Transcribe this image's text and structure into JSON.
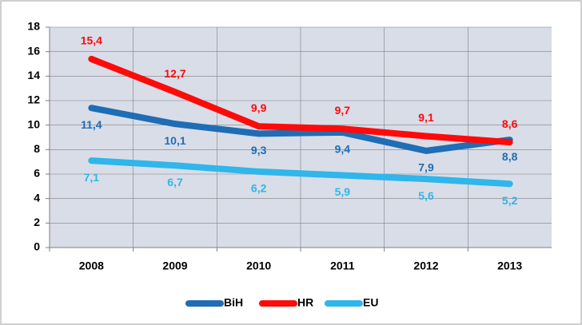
{
  "chart_data": {
    "type": "line",
    "categories": [
      "2008",
      "2009",
      "2010",
      "2011",
      "2012",
      "2013"
    ],
    "series": [
      {
        "name": "BiH",
        "color": "#1f6db4",
        "values": [
          11.4,
          10.1,
          9.3,
          9.4,
          7.9,
          8.8
        ],
        "value_labels": [
          "11,4",
          "10,1",
          "9,3",
          "9,4",
          "7,9",
          "8,8"
        ],
        "label_position": "below"
      },
      {
        "name": "HR",
        "color": "#ff0a0a",
        "values": [
          15.4,
          12.7,
          9.9,
          9.7,
          9.1,
          8.6
        ],
        "value_labels": [
          "15,4",
          "12,7",
          "9,9",
          "9,7",
          "9,1",
          "8,6"
        ],
        "label_position": "above"
      },
      {
        "name": "EU",
        "color": "#2fb6ea",
        "values": [
          7.1,
          6.7,
          6.2,
          5.9,
          5.6,
          5.2
        ],
        "value_labels": [
          "7,1",
          "6,7",
          "6,2",
          "5,9",
          "5,6",
          "5,2"
        ],
        "label_position": "below"
      }
    ],
    "ylim": [
      0,
      18
    ],
    "yticks": [
      0,
      2,
      4,
      6,
      8,
      10,
      12,
      14,
      16,
      18
    ],
    "grid": true,
    "legend": "bottom"
  }
}
